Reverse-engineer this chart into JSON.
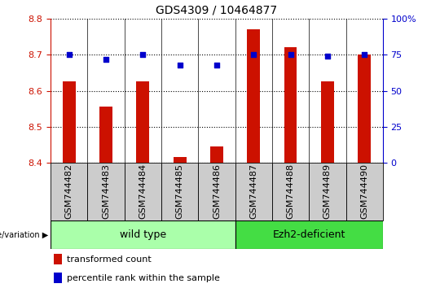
{
  "title": "GDS4309 / 10464877",
  "samples": [
    "GSM744482",
    "GSM744483",
    "GSM744484",
    "GSM744485",
    "GSM744486",
    "GSM744487",
    "GSM744488",
    "GSM744489",
    "GSM744490"
  ],
  "bar_values": [
    8.625,
    8.555,
    8.625,
    8.415,
    8.445,
    8.77,
    8.72,
    8.625,
    8.7
  ],
  "percentile_values": [
    75,
    72,
    75,
    68,
    68,
    75,
    75,
    74,
    75
  ],
  "ylim_left": [
    8.4,
    8.8
  ],
  "ylim_right": [
    0,
    100
  ],
  "yticks_left": [
    8.4,
    8.5,
    8.6,
    8.7,
    8.8
  ],
  "yticks_right": [
    0,
    25,
    50,
    75,
    100
  ],
  "bar_color": "#cc1100",
  "dot_color": "#0000cc",
  "grid_color": "#000000",
  "wild_type_count": 5,
  "wild_type_label": "wild type",
  "ezh2_label": "Ezh2-deficient",
  "group_label": "genotype/variation",
  "legend_bar_label": "transformed count",
  "legend_dot_label": "percentile rank within the sample",
  "title_fontsize": 10,
  "tick_fontsize": 8,
  "label_fontsize": 9,
  "bar_width": 0.35,
  "wild_type_color": "#aaffaa",
  "ezh2_color": "#44dd44",
  "cell_bg_color": "#cccccc",
  "ytick_right_labels": [
    "0",
    "25",
    "50",
    "75",
    "100%"
  ]
}
